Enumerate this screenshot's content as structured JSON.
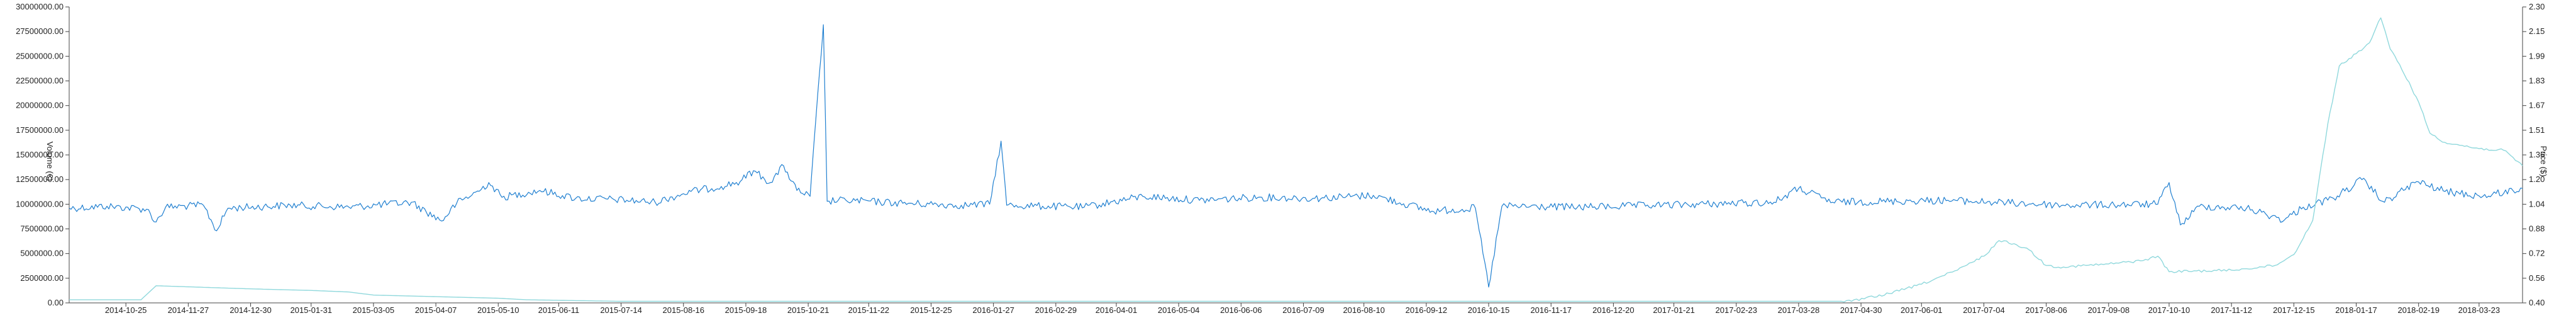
{
  "chart_data": {
    "type": "line",
    "y_left": {
      "label": "Volume (€)",
      "ylim": [
        0,
        30000000
      ],
      "ticks": [
        "0.00",
        "2500000.00",
        "5000000.00",
        "7500000.00",
        "10000000.00",
        "12500000.00",
        "15000000.00",
        "17500000.00",
        "20000000.00",
        "22500000.00",
        "25000000.00",
        "27500000.00",
        "30000000.00"
      ]
    },
    "y_right": {
      "label": "Price ($)",
      "ylim": [
        0.4,
        2.3
      ],
      "ticks": [
        "0.40",
        "0.56",
        "0.72",
        "0.88",
        "1.04",
        "1.20",
        "1.36",
        "1.51",
        "1.67",
        "1.83",
        "1.99",
        "2.15",
        "2.30"
      ]
    },
    "x": {
      "start": "2014-09-25",
      "end": "2018-04-15",
      "tick_labels": [
        "2014-10-25",
        "2014-11-27",
        "2014-12-30",
        "2015-01-31",
        "2015-03-05",
        "2015-04-07",
        "2015-05-10",
        "2015-06-11",
        "2015-07-14",
        "2015-08-16",
        "2015-09-18",
        "2015-10-21",
        "2015-11-22",
        "2015-12-25",
        "2016-01-27",
        "2016-02-29",
        "2016-04-01",
        "2016-05-04",
        "2016-06-06",
        "2016-07-09",
        "2016-08-10",
        "2016-09-12",
        "2016-10-15",
        "2016-11-17",
        "2016-12-20",
        "2017-01-21",
        "2017-02-23",
        "2017-03-28",
        "2017-04-30",
        "2017-06-01",
        "2017-07-04",
        "2017-08-06",
        "2017-09-08",
        "2017-10-10",
        "2017-11-12",
        "2017-12-15",
        "2018-01-17",
        "2018-02-19",
        "2018-03-23"
      ]
    },
    "series": [
      {
        "axis": "left",
        "color": "#1f7fd0",
        "points": [
          [
            "2014-09-25",
            9600000
          ],
          [
            "2014-10-15",
            9800000
          ],
          [
            "2014-11-05",
            9500000
          ],
          [
            "2014-11-10",
            8200000
          ],
          [
            "2014-11-15",
            9700000
          ],
          [
            "2014-12-05",
            9900000
          ],
          [
            "2014-12-12",
            7300000
          ],
          [
            "2014-12-18",
            9600000
          ],
          [
            "2015-01-20",
            9900000
          ],
          [
            "2015-02-20",
            9700000
          ],
          [
            "2015-03-25",
            10200000
          ],
          [
            "2015-04-10",
            8300000
          ],
          [
            "2015-04-18",
            10100000
          ],
          [
            "2015-05-01",
            11500000
          ],
          [
            "2015-05-05",
            12200000
          ],
          [
            "2015-05-12",
            10700000
          ],
          [
            "2015-06-01",
            11400000
          ],
          [
            "2015-06-20",
            10600000
          ],
          [
            "2015-07-10",
            10500000
          ],
          [
            "2015-08-01",
            10200000
          ],
          [
            "2015-08-20",
            11300000
          ],
          [
            "2015-09-05",
            11800000
          ],
          [
            "2015-09-15",
            12300000
          ],
          [
            "2015-09-22",
            13400000
          ],
          [
            "2015-10-01",
            12200000
          ],
          [
            "2015-10-08",
            13900000
          ],
          [
            "2015-10-15",
            11400000
          ],
          [
            "2015-10-22",
            10800000
          ],
          [
            "2015-10-29",
            28200000
          ],
          [
            "2015-10-31",
            10300000
          ],
          [
            "2015-11-10",
            10400000
          ],
          [
            "2015-12-10",
            10100000
          ],
          [
            "2016-01-10",
            9900000
          ],
          [
            "2016-01-25",
            10000000
          ],
          [
            "2016-01-31",
            16400000
          ],
          [
            "2016-02-03",
            9900000
          ],
          [
            "2016-03-15",
            9700000
          ],
          [
            "2016-04-15",
            10800000
          ],
          [
            "2016-05-15",
            10400000
          ],
          [
            "2016-06-15",
            10700000
          ],
          [
            "2016-07-15",
            10600000
          ],
          [
            "2016-08-15",
            10900000
          ],
          [
            "2016-09-15",
            9300000
          ],
          [
            "2016-10-08",
            9600000
          ],
          [
            "2016-10-15",
            1600000
          ],
          [
            "2016-10-22",
            9800000
          ],
          [
            "2016-12-01",
            9700000
          ],
          [
            "2017-01-15",
            9900000
          ],
          [
            "2017-03-15",
            10200000
          ],
          [
            "2017-03-28",
            11600000
          ],
          [
            "2017-04-15",
            10200000
          ],
          [
            "2017-06-15",
            10400000
          ],
          [
            "2017-08-15",
            9900000
          ],
          [
            "2017-10-04",
            10000000
          ],
          [
            "2017-10-10",
            12200000
          ],
          [
            "2017-10-16",
            7900000
          ],
          [
            "2017-10-26",
            9800000
          ],
          [
            "2017-11-20",
            9600000
          ],
          [
            "2017-12-10",
            8400000
          ],
          [
            "2017-12-20",
            9700000
          ],
          [
            "2018-01-05",
            10600000
          ],
          [
            "2018-01-20",
            12500000
          ],
          [
            "2018-02-01",
            10200000
          ],
          [
            "2018-02-18",
            12300000
          ],
          [
            "2018-03-05",
            11300000
          ],
          [
            "2018-03-25",
            10800000
          ],
          [
            "2018-04-15",
            11600000
          ]
        ]
      },
      {
        "axis": "right",
        "color": "#8fd8dc",
        "points": [
          [
            "2014-09-25",
            0.42
          ],
          [
            "2014-11-02",
            0.42
          ],
          [
            "2014-11-10",
            0.51
          ],
          [
            "2014-12-30",
            0.49
          ],
          [
            "2015-01-31",
            0.48
          ],
          [
            "2015-02-20",
            0.47
          ],
          [
            "2015-03-05",
            0.45
          ],
          [
            "2015-04-07",
            0.44
          ],
          [
            "2015-05-10",
            0.43
          ],
          [
            "2015-05-25",
            0.42
          ],
          [
            "2015-07-14",
            0.41
          ],
          [
            "2017-04-25",
            0.41
          ],
          [
            "2017-05-15",
            0.46
          ],
          [
            "2017-06-01",
            0.52
          ],
          [
            "2017-06-20",
            0.61
          ],
          [
            "2017-07-04",
            0.7
          ],
          [
            "2017-07-12",
            0.8
          ],
          [
            "2017-07-20",
            0.78
          ],
          [
            "2017-07-28",
            0.74
          ],
          [
            "2017-08-06",
            0.64
          ],
          [
            "2017-08-15",
            0.63
          ],
          [
            "2017-09-08",
            0.65
          ],
          [
            "2017-09-25",
            0.67
          ],
          [
            "2017-10-04",
            0.7
          ],
          [
            "2017-10-10",
            0.6
          ],
          [
            "2017-11-12",
            0.61
          ],
          [
            "2017-12-05",
            0.64
          ],
          [
            "2017-12-15",
            0.71
          ],
          [
            "2017-12-25",
            0.93
          ],
          [
            "2018-01-02",
            1.55
          ],
          [
            "2018-01-08",
            1.92
          ],
          [
            "2018-01-17",
            2.0
          ],
          [
            "2018-01-24",
            2.07
          ],
          [
            "2018-01-30",
            2.23
          ],
          [
            "2018-02-04",
            2.03
          ],
          [
            "2018-02-09",
            1.93
          ],
          [
            "2018-02-19",
            1.69
          ],
          [
            "2018-02-25",
            1.49
          ],
          [
            "2018-03-05",
            1.43
          ],
          [
            "2018-03-23",
            1.39
          ],
          [
            "2018-04-05",
            1.38
          ],
          [
            "2018-04-15",
            1.28
          ]
        ]
      }
    ]
  }
}
